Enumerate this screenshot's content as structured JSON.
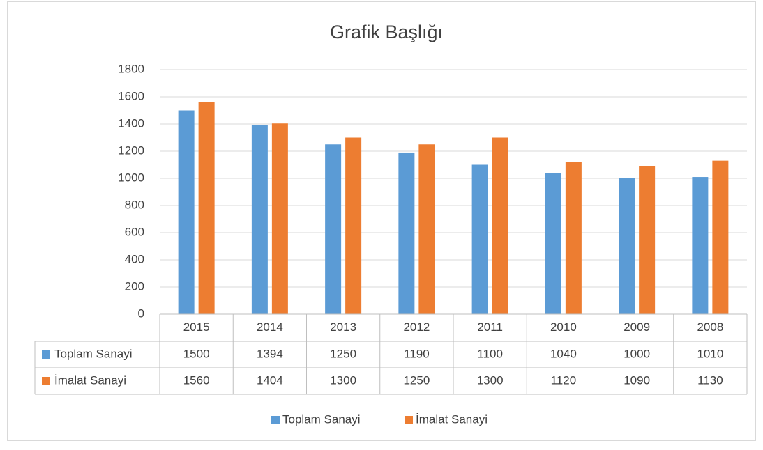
{
  "chart_data": {
    "type": "bar",
    "title": "Grafik Başlığı",
    "categories": [
      "2015",
      "2014",
      "2013",
      "2012",
      "2011",
      "2010",
      "2009",
      "2008"
    ],
    "series": [
      {
        "name": "Toplam Sanayi",
        "color": "#5b9bd5",
        "values": [
          1500,
          1394,
          1250,
          1190,
          1100,
          1040,
          1000,
          1010
        ]
      },
      {
        "name": "İmalat Sanayi",
        "color": "#ed7d31",
        "values": [
          1560,
          1404,
          1300,
          1250,
          1300,
          1120,
          1090,
          1130
        ]
      }
    ],
    "ylim": [
      0,
      1800
    ],
    "yticks": [
      0,
      200,
      400,
      600,
      800,
      1000,
      1200,
      1400,
      1600,
      1800
    ],
    "grid": true,
    "legend": "bottom"
  }
}
